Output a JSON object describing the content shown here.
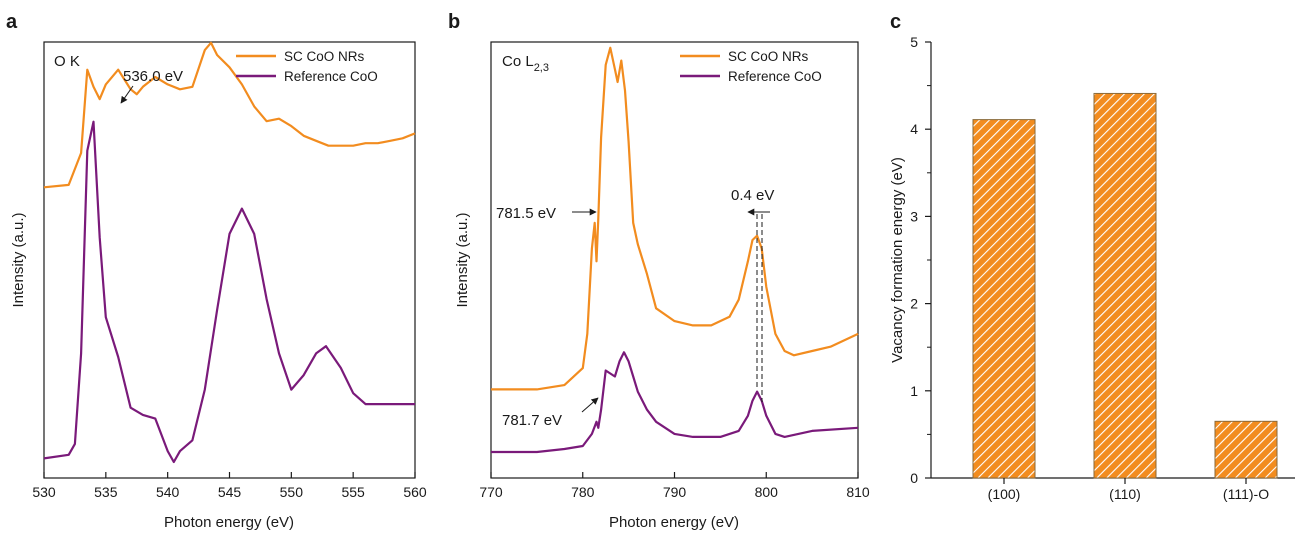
{
  "colors": {
    "orange": "#F28C1F",
    "purple": "#7A1A7A",
    "axis": "#1a1a1a",
    "bar_stroke": "#8a6a3a"
  },
  "chart_data": [
    {
      "panel": "a",
      "type": "line",
      "inset_label": "O K",
      "xlabel": "Photon energy (eV)",
      "ylabel": "Intensity (a.u.)",
      "xlim": [
        530,
        560
      ],
      "xticks": [
        "530",
        "535",
        "540",
        "545",
        "550",
        "555",
        "560"
      ],
      "legend_position": "top-right",
      "series": [
        {
          "name": "SC CoO NRs",
          "color": "orange",
          "x": [
            530,
            532,
            533,
            533.5,
            534,
            534.5,
            535,
            536,
            537,
            537.5,
            538,
            539,
            540,
            541,
            542,
            543,
            543.5,
            544,
            545,
            546,
            547,
            548,
            549,
            550,
            551,
            552,
            553,
            554,
            555,
            556,
            557,
            558,
            559,
            560
          ],
          "y": [
            0.46,
            0.47,
            0.6,
            0.94,
            0.87,
            0.82,
            0.88,
            0.94,
            0.86,
            0.84,
            0.87,
            0.91,
            0.88,
            0.86,
            0.87,
            1.02,
            1.05,
            1.0,
            0.95,
            0.88,
            0.79,
            0.73,
            0.74,
            0.71,
            0.67,
            0.65,
            0.63,
            0.63,
            0.63,
            0.64,
            0.64,
            0.65,
            0.66,
            0.68
          ]
        },
        {
          "name": "Reference CoO",
          "color": "purple",
          "x": [
            530,
            532,
            532.5,
            533,
            533.5,
            534,
            534.5,
            535,
            536,
            537,
            538,
            539,
            540,
            540.5,
            541,
            542,
            543,
            544,
            545,
            546,
            547,
            548,
            549,
            550,
            551,
            552,
            552.8,
            554,
            555,
            556,
            558,
            560
          ],
          "y": [
            0.01,
            0.02,
            0.05,
            0.3,
            0.86,
            0.94,
            0.62,
            0.4,
            0.29,
            0.15,
            0.13,
            0.12,
            0.03,
            0.0,
            0.03,
            0.06,
            0.2,
            0.42,
            0.63,
            0.7,
            0.63,
            0.45,
            0.3,
            0.2,
            0.24,
            0.3,
            0.32,
            0.26,
            0.19,
            0.16,
            0.16,
            0.16
          ]
        }
      ],
      "annotations": [
        {
          "text": "536.0 eV",
          "x": 536.0,
          "y": 0.94
        }
      ]
    },
    {
      "panel": "b",
      "type": "line",
      "inset_label": "Co L",
      "inset_subscript": "2,3",
      "xlabel": "Photon energy (eV)",
      "ylabel": "Intensity (a.u.)",
      "xlim": [
        770,
        810
      ],
      "xticks": [
        "770",
        "780",
        "790",
        "800",
        "810"
      ],
      "legend_position": "top-right",
      "series": [
        {
          "name": "SC CoO NRs",
          "color": "orange",
          "x": [
            770,
            775,
            778,
            780,
            780.5,
            781,
            781.3,
            781.5,
            781.7,
            782,
            782.5,
            783,
            783.5,
            783.8,
            784.2,
            784.6,
            785,
            785.5,
            786,
            787,
            788,
            790,
            792,
            794,
            796,
            797,
            798,
            798.5,
            799,
            799.5,
            800,
            801,
            802,
            803,
            805,
            807,
            810
          ],
          "y": [
            0.17,
            0.17,
            0.18,
            0.22,
            0.3,
            0.5,
            0.56,
            0.47,
            0.57,
            0.76,
            0.93,
            0.97,
            0.92,
            0.89,
            0.94,
            0.87,
            0.75,
            0.56,
            0.51,
            0.44,
            0.36,
            0.33,
            0.32,
            0.32,
            0.34,
            0.38,
            0.47,
            0.52,
            0.53,
            0.5,
            0.41,
            0.3,
            0.26,
            0.25,
            0.26,
            0.27,
            0.3
          ]
        },
        {
          "name": "Reference CoO",
          "color": "purple",
          "x": [
            770,
            775,
            778,
            780,
            781,
            781.5,
            781.7,
            782,
            782.5,
            783,
            783.5,
            784,
            784.5,
            785,
            785.5,
            786,
            787,
            788,
            790,
            792,
            795,
            797,
            798,
            798.5,
            799,
            799.5,
            800,
            801,
            802,
            805,
            810
          ],
          "y": [
            0.0,
            0.0,
            0.01,
            0.02,
            0.06,
            0.1,
            0.08,
            0.14,
            0.27,
            0.26,
            0.25,
            0.3,
            0.33,
            0.3,
            0.25,
            0.2,
            0.14,
            0.1,
            0.06,
            0.05,
            0.05,
            0.07,
            0.12,
            0.17,
            0.2,
            0.17,
            0.12,
            0.06,
            0.05,
            0.07,
            0.08
          ]
        }
      ],
      "annotations": [
        {
          "text": "781.5 eV",
          "x": 781.5,
          "y": 0.52
        },
        {
          "text": "781.7 eV",
          "x": 781.7,
          "y": 0.1
        },
        {
          "text": "0.4 eV",
          "x": 799.2,
          "y": 0.6
        }
      ]
    },
    {
      "panel": "c",
      "type": "bar",
      "xlabel": "",
      "ylabel": "Vacancy formation energy (eV)",
      "ylim": [
        0,
        5
      ],
      "yticks": [
        "0",
        "1",
        "2",
        "3",
        "4",
        "5"
      ],
      "categories": [
        "(100)",
        "(110)",
        "(111)-O"
      ],
      "values": [
        4.11,
        4.41,
        0.65
      ],
      "bar_color": "orange"
    }
  ]
}
